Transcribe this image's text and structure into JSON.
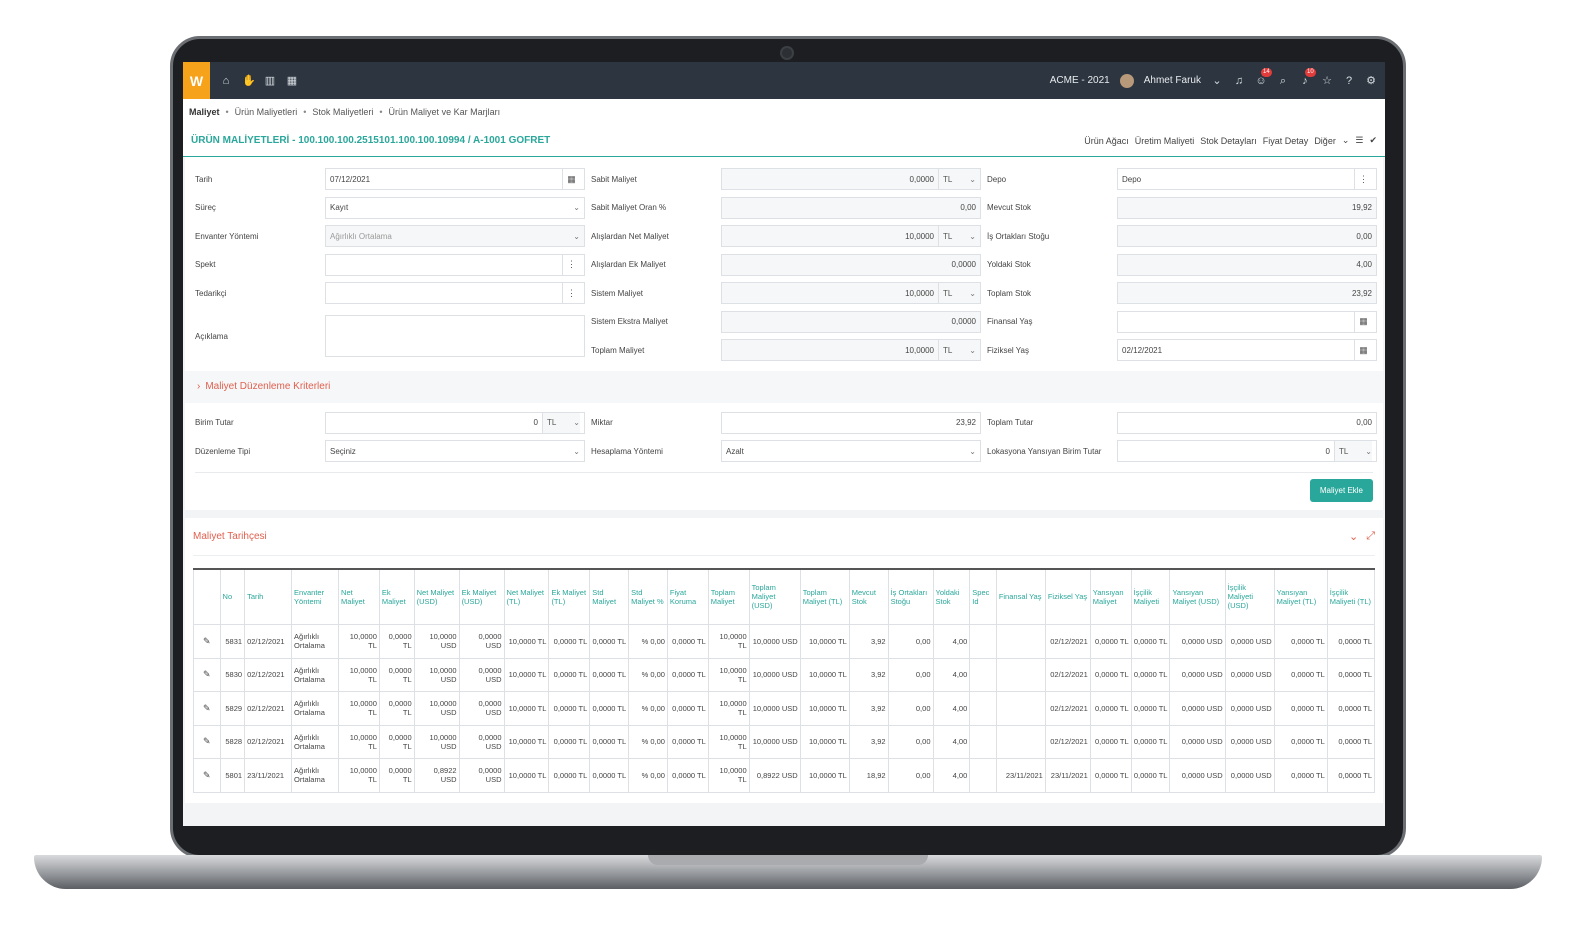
{
  "topbar": {
    "logo": "W",
    "company": "ACME - 2021",
    "user": "Ahmet Faruk",
    "messages_badge": "14",
    "notifications_badge": "10"
  },
  "breadcrumb": [
    "Maliyet",
    "Ürün Maliyetleri",
    "Stok Maliyetleri",
    "Ürün Maliyet ve Kar Marjları"
  ],
  "title": "ÜRÜN MALİYETLERİ - 100.100.100.2515101.100.100.10994 / A-1001 GOFRET",
  "actions": [
    "Ürün Ağacı",
    "Üretim Maliyeti",
    "Stok Detayları",
    "Fiyat Detay",
    "Diğer"
  ],
  "form": {
    "col1": {
      "tarih_label": "Tarih",
      "tarih": "07/12/2021",
      "surec_label": "Süreç",
      "surec": "Kayıt",
      "envanter_label": "Envanter Yöntemi",
      "envanter": "Ağırlıklı Ortalama",
      "spekt_label": "Spekt",
      "tedarikci_label": "Tedarikçi",
      "aciklama_label": "Açıklama"
    },
    "col2": {
      "sabit_label": "Sabit Maliyet",
      "sabit": "0,0000",
      "sabit_unit": "TL",
      "sabit_oran_label": "Sabit Maliyet Oran %",
      "sabit_oran": "0,00",
      "alis_net_label": "Alışlardan Net Maliyet",
      "alis_net": "10,0000",
      "alis_net_unit": "TL",
      "alis_ek_label": "Alışlardan Ek Maliyet",
      "alis_ek": "0,0000",
      "sistem_label": "Sistem Maliyet",
      "sistem": "10,0000",
      "sistem_unit": "TL",
      "sistem_ekstra_label": "Sistem Ekstra Maliyet",
      "sistem_ekstra": "0,0000",
      "toplam_label": "Toplam Maliyet",
      "toplam": "10,0000",
      "toplam_unit": "TL"
    },
    "col3": {
      "depo_label": "Depo",
      "depo": "Depo",
      "mevcut_label": "Mevcut Stok",
      "mevcut": "19,92",
      "is_ortak_label": "İş Ortakları Stoğu",
      "is_ortak": "0,00",
      "yoldaki_label": "Yoldaki Stok",
      "yoldaki": "4,00",
      "toplam_stok_label": "Toplam Stok",
      "toplam_stok": "23,92",
      "finansal_label": "Finansal Yaş",
      "finansal": "",
      "fiziksel_label": "Fiziksel Yaş",
      "fiziksel": "02/12/2021"
    }
  },
  "criteria": {
    "title": "Maliyet Düzenleme Kriterleri",
    "birim_label": "Birim Tutar",
    "birim": "0",
    "birim_unit": "TL",
    "duzenleme_label": "Düzenleme Tipi",
    "duzenleme": "Seçiniz",
    "miktar_label": "Miktar",
    "miktar": "23,92",
    "hesap_label": "Hesaplama Yöntemi",
    "hesap": "Azalt",
    "toplam_tutar_label": "Toplam Tutar",
    "toplam_tutar": "0,00",
    "lokasyon_label": "Lokasyona Yansıyan Birim Tutar",
    "lokasyon": "0",
    "lokasyon_unit": "TL",
    "add_button": "Maliyet Ekle"
  },
  "history": {
    "title": "Maliyet Tarihçesi",
    "columns": [
      "",
      "No",
      "Tarih",
      "Envanter Yöntemi",
      "Net Maliyet",
      "Ek Maliyet",
      "Net Maliyet (USD)",
      "Ek Maliyet (USD)",
      "Net Maliyet (TL)",
      "Ek Maliyet (TL)",
      "Std Maliyet",
      "Std Maliyet %",
      "Fiyat Koruma",
      "Toplam Maliyet",
      "Toplam Maliyet (USD)",
      "Toplam Maliyet (TL)",
      "Mevcut Stok",
      "İş Ortakları Stoğu",
      "Yoldaki Stok",
      "Spec Id",
      "Finansal Yaş",
      "Fiziksel Yaş",
      "Yansıyan Maliyet",
      "İşçilik Maliyeti",
      "Yansıyan Maliyet (USD)",
      "İşçilik Maliyeti (USD)",
      "Yansıyan Maliyet (TL)",
      "İşçilik Maliyeti (TL)"
    ],
    "rows": [
      [
        "5831",
        "02/12/2021",
        "Ağırlıklı Ortalama",
        "10,0000 TL",
        "0,0000 TL",
        "10,0000 USD",
        "0,0000 USD",
        "10,0000 TL",
        "0,0000 TL",
        "0,0000 TL",
        "% 0,00",
        "0,0000 TL",
        "10,0000 TL",
        "10,0000 USD",
        "10,0000 TL",
        "3,92",
        "0,00",
        "4,00",
        "",
        "",
        "02/12/2021",
        "0,0000 TL",
        "0,0000 TL",
        "0,0000 USD",
        "0,0000 USD",
        "0,0000 TL",
        "0,0000 TL"
      ],
      [
        "5830",
        "02/12/2021",
        "Ağırlıklı Ortalama",
        "10,0000 TL",
        "0,0000 TL",
        "10,0000 USD",
        "0,0000 USD",
        "10,0000 TL",
        "0,0000 TL",
        "0,0000 TL",
        "% 0,00",
        "0,0000 TL",
        "10,0000 TL",
        "10,0000 USD",
        "10,0000 TL",
        "3,92",
        "0,00",
        "4,00",
        "",
        "",
        "02/12/2021",
        "0,0000 TL",
        "0,0000 TL",
        "0,0000 USD",
        "0,0000 USD",
        "0,0000 TL",
        "0,0000 TL"
      ],
      [
        "5829",
        "02/12/2021",
        "Ağırlıklı Ortalama",
        "10,0000 TL",
        "0,0000 TL",
        "10,0000 USD",
        "0,0000 USD",
        "10,0000 TL",
        "0,0000 TL",
        "0,0000 TL",
        "% 0,00",
        "0,0000 TL",
        "10,0000 TL",
        "10,0000 USD",
        "10,0000 TL",
        "3,92",
        "0,00",
        "4,00",
        "",
        "",
        "02/12/2021",
        "0,0000 TL",
        "0,0000 TL",
        "0,0000 USD",
        "0,0000 USD",
        "0,0000 TL",
        "0,0000 TL"
      ],
      [
        "5828",
        "02/12/2021",
        "Ağırlıklı Ortalama",
        "10,0000 TL",
        "0,0000 TL",
        "10,0000 USD",
        "0,0000 USD",
        "10,0000 TL",
        "0,0000 TL",
        "0,0000 TL",
        "% 0,00",
        "0,0000 TL",
        "10,0000 TL",
        "10,0000 USD",
        "10,0000 TL",
        "3,92",
        "0,00",
        "4,00",
        "",
        "",
        "02/12/2021",
        "0,0000 TL",
        "0,0000 TL",
        "0,0000 USD",
        "0,0000 USD",
        "0,0000 TL",
        "0,0000 TL"
      ],
      [
        "5801",
        "23/11/2021",
        "Ağırlıklı Ortalama",
        "10,0000 TL",
        "0,0000 TL",
        "0,8922 USD",
        "0,0000 USD",
        "10,0000 TL",
        "0,0000 TL",
        "0,0000 TL",
        "% 0,00",
        "0,0000 TL",
        "10,0000 TL",
        "0,8922 USD",
        "10,0000 TL",
        "18,92",
        "0,00",
        "4,00",
        "",
        "23/11/2021",
        "23/11/2021",
        "0,0000 TL",
        "0,0000 TL",
        "0,0000 USD",
        "0,0000 USD",
        "0,0000 TL",
        "0,0000 TL"
      ]
    ]
  }
}
